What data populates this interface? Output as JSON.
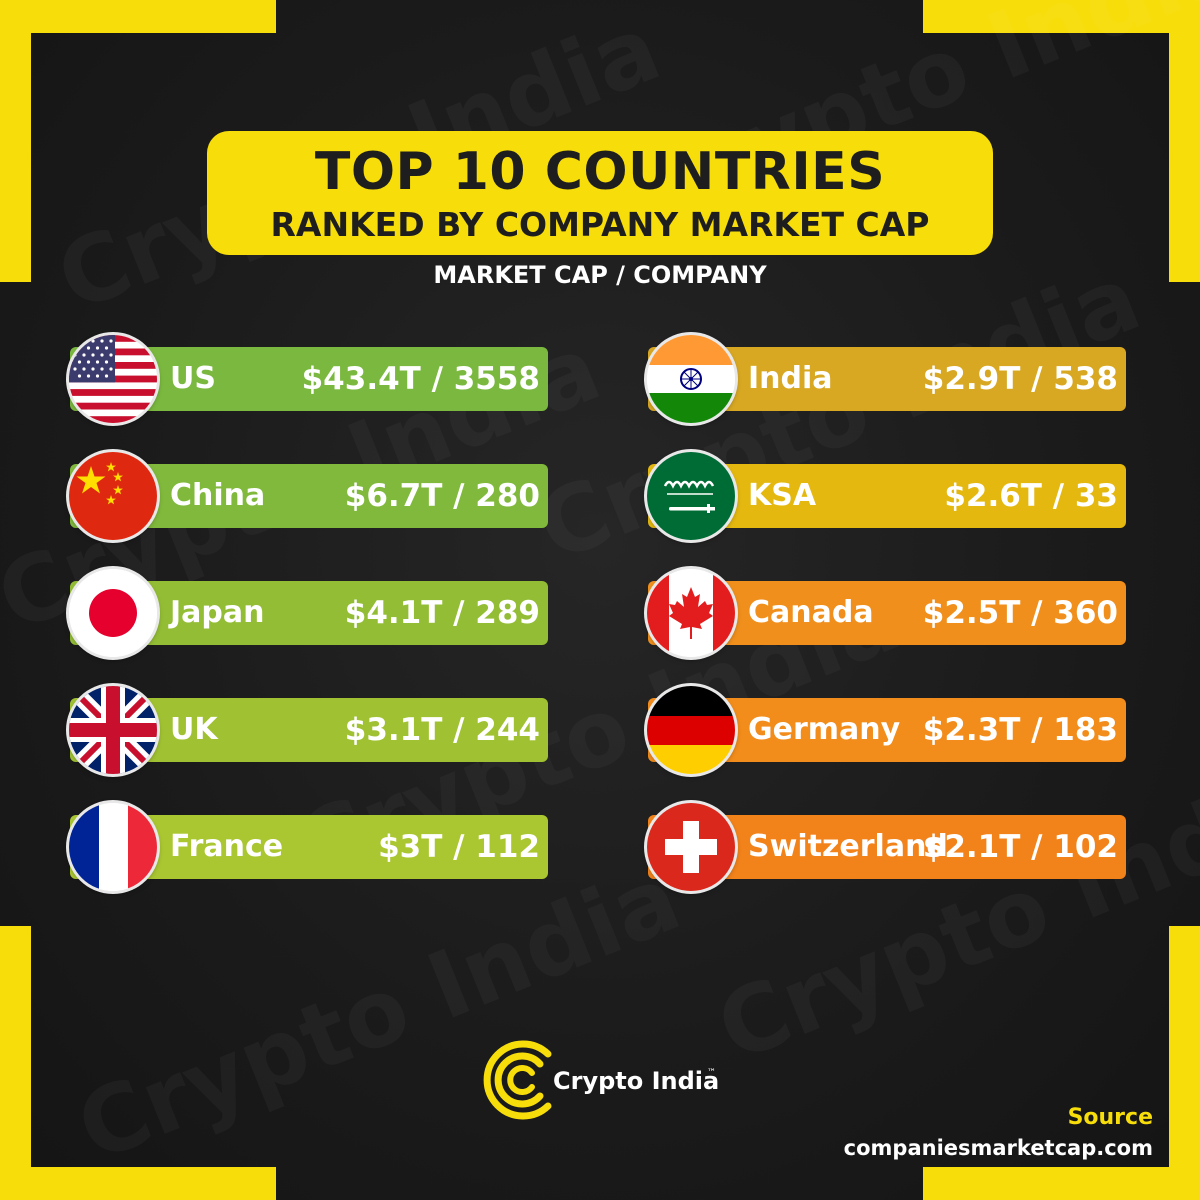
{
  "header": {
    "title": "TOP 10 COUNTRIES",
    "subtitle": "RANKED BY COMPANY MARKET CAP",
    "column_label": "MARKET CAP / COMPANY"
  },
  "left_column": [
    {
      "country": "US",
      "value": "$43.4T / 3558",
      "flag": "us-flag-icon",
      "color": "#7ab83f"
    },
    {
      "country": "China",
      "value": "$6.7T / 280",
      "flag": "china-flag-icon",
      "color": "#80b93c"
    },
    {
      "country": "Japan",
      "value": "$4.1T / 289",
      "flag": "japan-flag-icon",
      "color": "#93bd35"
    },
    {
      "country": "UK",
      "value": "$3.1T / 244",
      "flag": "uk-flag-icon",
      "color": "#a0c232"
    },
    {
      "country": "France",
      "value": "$3T / 112",
      "flag": "france-flag-icon",
      "color": "#aac631"
    }
  ],
  "right_column": [
    {
      "country": "India",
      "value": "$2.9T / 538",
      "flag": "india-flag-icon",
      "color": "#d8a823"
    },
    {
      "country": "KSA",
      "value": "$2.6T / 33",
      "flag": "saudi-flag-icon",
      "color": "#e4b80f"
    },
    {
      "country": "Canada",
      "value": "$2.5T / 360",
      "flag": "canada-flag-icon",
      "color": "#f08f1c"
    },
    {
      "country": "Germany",
      "value": "$2.3T / 183",
      "flag": "germany-flag-icon",
      "color": "#f28c1b"
    },
    {
      "country": "Switzerland",
      "value": "$2.1T / 102",
      "flag": "switzerland-flag-icon",
      "color": "#f2821a"
    }
  ],
  "branding": {
    "logo_text": "Crypto India",
    "trademark": "™",
    "watermark_text": "Crypto India",
    "accent_color": "#f7dd0a"
  },
  "source": {
    "label": "Source",
    "url": "companiesmarketcap.com"
  }
}
